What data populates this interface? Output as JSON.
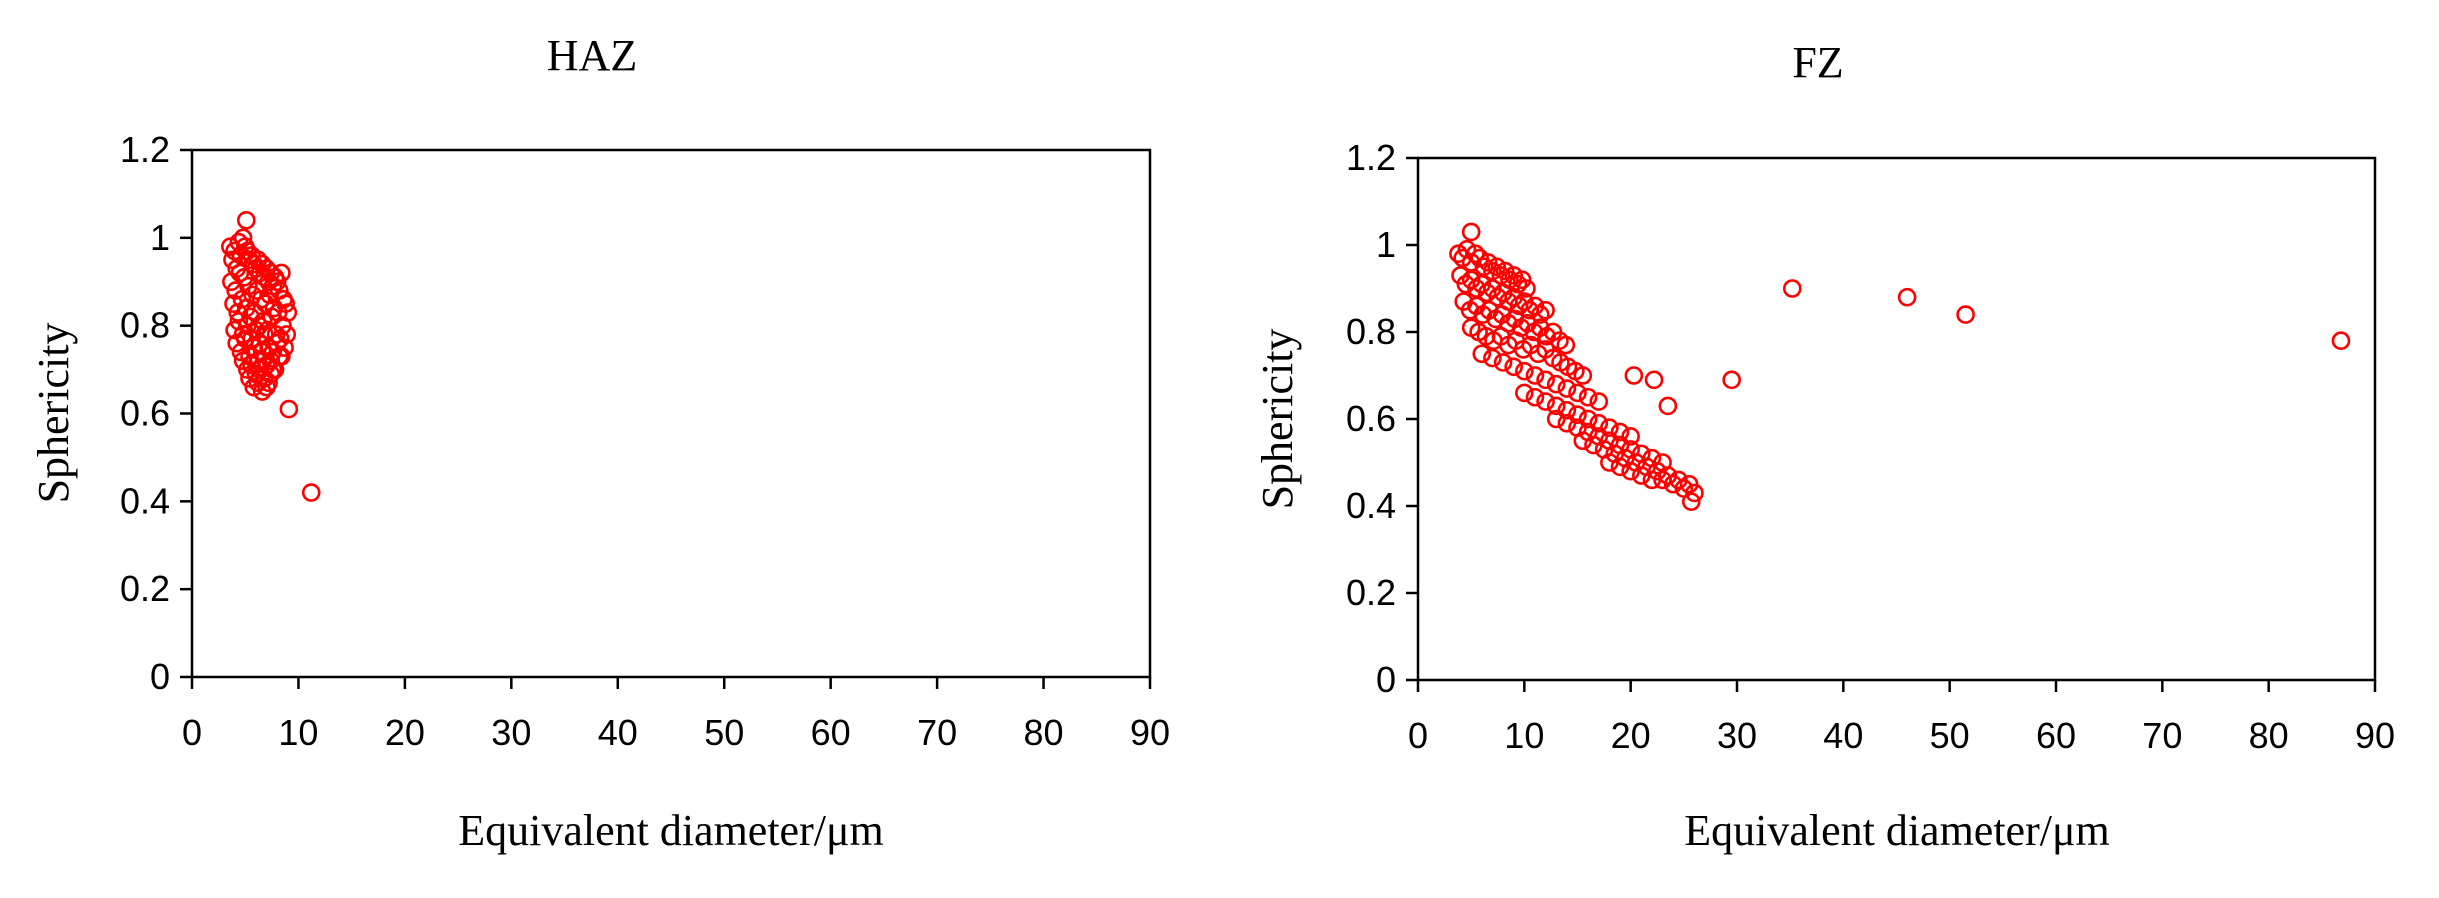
{
  "chart_data": [
    {
      "type": "scatter",
      "title": "HAZ",
      "xlabel": "Equivalent diameter/μm",
      "ylabel": "Sphericity",
      "xlim": [
        0,
        90
      ],
      "ylim": [
        0,
        1.2
      ],
      "xticks": [
        "0",
        "10",
        "20",
        "30",
        "40",
        "50",
        "60",
        "70",
        "80",
        "90"
      ],
      "yticks": [
        "0",
        "0.2",
        "0.4",
        "0.6",
        "0.8",
        "1",
        "1.2"
      ],
      "grid": false,
      "marker": "open-circle",
      "color": "#ff0000",
      "series": [
        {
          "x": [
            3.6,
            3.8,
            4.0,
            4.2,
            4.4,
            4.6,
            4.8,
            5.0,
            5.2,
            5.4,
            5.6,
            5.8,
            6.0,
            6.2,
            6.4,
            6.6,
            6.8,
            7.0,
            7.2,
            7.4,
            7.6,
            7.8,
            8.0,
            8.2,
            8.4,
            8.6,
            8.8,
            9.0,
            3.7,
            4.1,
            4.5,
            4.9,
            5.3,
            5.7,
            6.1,
            6.5,
            6.9,
            7.3,
            7.7,
            8.1,
            8.5,
            8.9,
            3.9,
            4.3,
            4.7,
            5.1,
            5.5,
            5.9,
            6.3,
            6.7,
            7.1,
            7.5,
            7.9,
            8.3,
            8.7,
            4.0,
            4.4,
            4.8,
            5.2,
            5.6,
            6.0,
            6.4,
            6.8,
            7.2,
            7.6,
            8.0,
            8.4,
            4.2,
            4.6,
            5.0,
            5.4,
            5.8,
            6.2,
            6.6,
            7.0,
            7.4,
            7.8,
            8.2,
            4.8,
            5.2,
            5.6,
            6.0,
            6.4,
            6.8,
            7.2,
            7.6,
            5.4,
            5.8,
            6.2,
            6.6,
            7.0,
            7.4,
            5.1,
            9.1,
            11.2
          ],
          "y": [
            0.98,
            0.95,
            0.97,
            0.93,
            0.99,
            0.96,
            1.0,
            0.98,
            0.97,
            0.95,
            0.96,
            0.94,
            0.93,
            0.95,
            0.92,
            0.94,
            0.91,
            0.93,
            0.9,
            0.92,
            0.89,
            0.91,
            0.9,
            0.88,
            0.92,
            0.86,
            0.85,
            0.83,
            0.9,
            0.88,
            0.92,
            0.91,
            0.89,
            0.87,
            0.88,
            0.86,
            0.85,
            0.87,
            0.84,
            0.83,
            0.8,
            0.78,
            0.85,
            0.83,
            0.86,
            0.84,
            0.82,
            0.83,
            0.8,
            0.81,
            0.79,
            0.82,
            0.78,
            0.77,
            0.75,
            0.79,
            0.81,
            0.78,
            0.8,
            0.77,
            0.79,
            0.76,
            0.78,
            0.75,
            0.74,
            0.76,
            0.73,
            0.76,
            0.74,
            0.77,
            0.73,
            0.75,
            0.72,
            0.74,
            0.71,
            0.72,
            0.7,
            0.73,
            0.72,
            0.7,
            0.71,
            0.69,
            0.7,
            0.68,
            0.67,
            0.7,
            0.68,
            0.66,
            0.67,
            0.65,
            0.66,
            0.69,
            1.04,
            0.61,
            0.42
          ]
        }
      ]
    },
    {
      "type": "scatter",
      "title": "FZ",
      "xlabel": "Equivalent diameter/μm",
      "ylabel": "Sphericity",
      "xlim": [
        0,
        90
      ],
      "ylim": [
        0,
        1.2
      ],
      "xticks": [
        "0",
        "10",
        "20",
        "30",
        "40",
        "50",
        "60",
        "70",
        "80",
        "90"
      ],
      "yticks": [
        "0",
        "0.2",
        "0.4",
        "0.6",
        "0.8",
        "1",
        "1.2"
      ],
      "grid": false,
      "marker": "open-circle",
      "color": "#ff0000",
      "series": [
        {
          "x": [
            3.8,
            4.2,
            4.6,
            5.0,
            5.4,
            5.8,
            6.2,
            6.6,
            7.0,
            7.4,
            7.8,
            8.2,
            8.6,
            9.0,
            9.4,
            9.8,
            10.2,
            4.0,
            4.5,
            5.0,
            5.5,
            6.0,
            6.5,
            7.0,
            7.5,
            8.0,
            8.5,
            9.0,
            9.5,
            10.0,
            10.5,
            11.0,
            11.5,
            12.0,
            4.3,
            4.9,
            5.5,
            6.1,
            6.7,
            7.3,
            7.9,
            8.5,
            9.1,
            9.7,
            10.3,
            10.9,
            11.5,
            12.1,
            12.7,
            13.3,
            13.9,
            5.0,
            5.7,
            6.4,
            7.1,
            7.8,
            8.5,
            9.2,
            9.9,
            10.6,
            11.3,
            12.0,
            12.7,
            13.4,
            14.1,
            14.8,
            15.5,
            6.0,
            7.0,
            8.0,
            9.0,
            10.0,
            11.0,
            12.0,
            13.0,
            14.0,
            15.0,
            16.0,
            17.0,
            10.0,
            11.0,
            12.0,
            13.0,
            14.0,
            15.0,
            16.0,
            17.0,
            18.0,
            19.0,
            20.0,
            13.0,
            14.0,
            15.0,
            16.0,
            17.0,
            18.0,
            19.0,
            20.0,
            21.0,
            22.0,
            23.0,
            15.5,
            16.5,
            17.5,
            18.5,
            19.5,
            20.5,
            21.5,
            22.5,
            23.5,
            24.5,
            25.5,
            18.0,
            19.0,
            20.0,
            21.0,
            22.0,
            23.0,
            24.0,
            25.0,
            26.0,
            5.0,
            20.3,
            22.2,
            23.5,
            25.7,
            29.5,
            35.2,
            46.0,
            51.5,
            86.8
          ],
          "y": [
            0.98,
            0.97,
            0.99,
            0.96,
            0.98,
            0.97,
            0.95,
            0.96,
            0.94,
            0.95,
            0.93,
            0.94,
            0.92,
            0.93,
            0.91,
            0.92,
            0.9,
            0.93,
            0.91,
            0.92,
            0.9,
            0.91,
            0.89,
            0.9,
            0.88,
            0.89,
            0.87,
            0.88,
            0.86,
            0.87,
            0.85,
            0.86,
            0.84,
            0.85,
            0.87,
            0.85,
            0.86,
            0.84,
            0.85,
            0.83,
            0.84,
            0.82,
            0.83,
            0.81,
            0.82,
            0.8,
            0.81,
            0.79,
            0.8,
            0.78,
            0.77,
            0.81,
            0.8,
            0.79,
            0.78,
            0.79,
            0.77,
            0.78,
            0.76,
            0.77,
            0.75,
            0.76,
            0.74,
            0.73,
            0.72,
            0.71,
            0.7,
            0.75,
            0.74,
            0.73,
            0.72,
            0.71,
            0.7,
            0.69,
            0.68,
            0.67,
            0.66,
            0.65,
            0.64,
            0.66,
            0.65,
            0.64,
            0.63,
            0.62,
            0.61,
            0.6,
            0.59,
            0.58,
            0.57,
            0.56,
            0.6,
            0.59,
            0.58,
            0.57,
            0.56,
            0.55,
            0.54,
            0.53,
            0.52,
            0.51,
            0.5,
            0.55,
            0.54,
            0.53,
            0.52,
            0.51,
            0.5,
            0.49,
            0.48,
            0.47,
            0.46,
            0.45,
            0.5,
            0.49,
            0.48,
            0.47,
            0.46,
            0.46,
            0.45,
            0.44,
            0.43,
            1.03,
            0.7,
            0.69,
            0.63,
            0.41,
            0.69,
            0.9,
            0.88,
            0.84,
            0.78
          ]
        }
      ]
    }
  ]
}
